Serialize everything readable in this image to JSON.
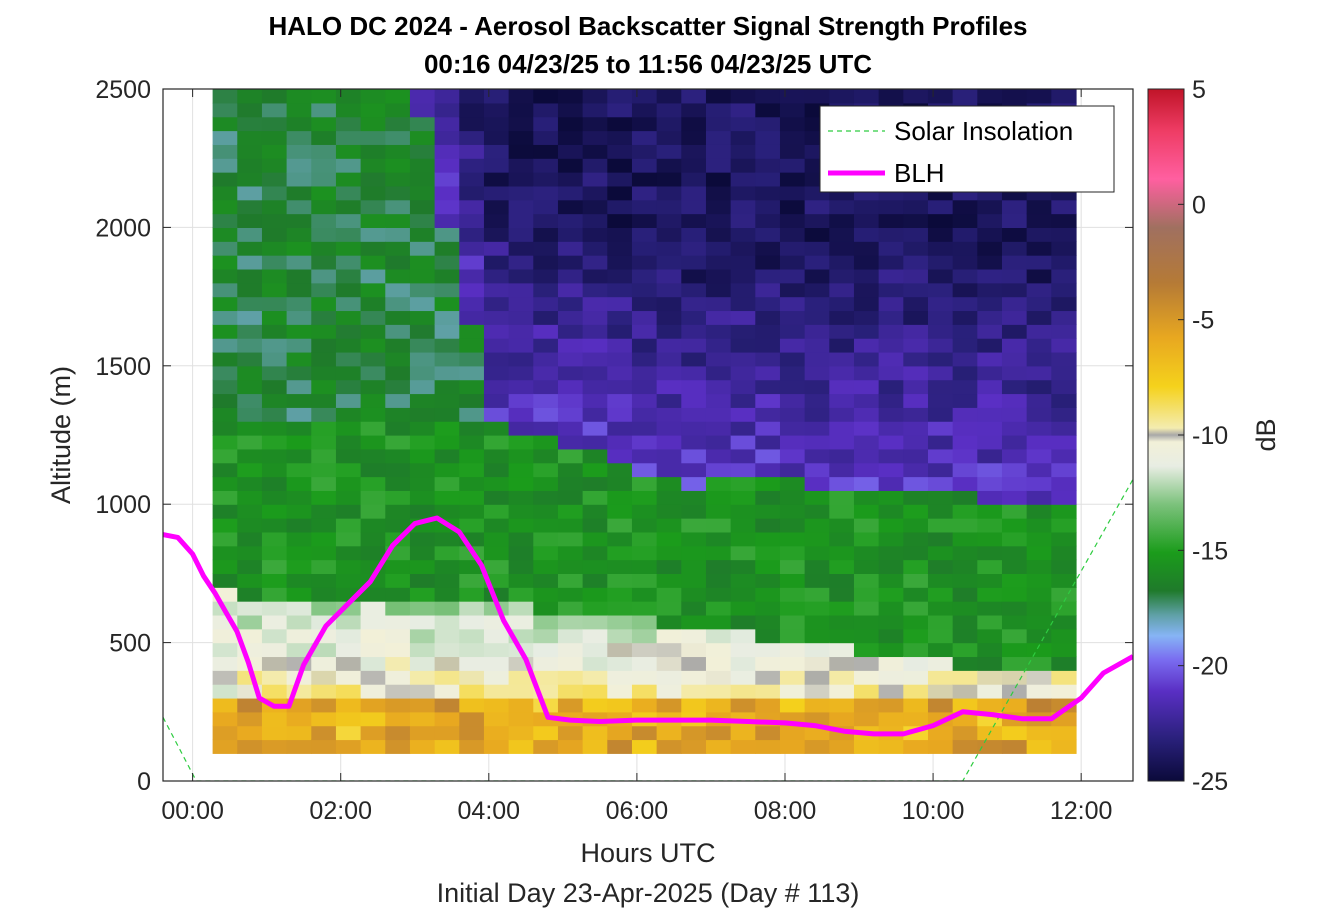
{
  "chart_data": {
    "type": "heatmap",
    "title": "HALO DC 2024 - Aerosol Backscatter Signal Strength Profiles",
    "subtitle": "00:16 04/23/25 to 11:56 04/23/25  UTC",
    "xlabel": "Hours UTC",
    "xlabel2": "Initial Day 23-Apr-2025 (Day # 113)",
    "ylabel": "Altitude (m)",
    "colorbar_label": "dB",
    "xlim": [
      -0.4,
      12.7
    ],
    "ylim": [
      0,
      2500
    ],
    "x_ticks": [
      0,
      2,
      4,
      6,
      8,
      10,
      12
    ],
    "x_tick_labels": [
      "00:00",
      "02:00",
      "04:00",
      "06:00",
      "08:00",
      "10:00",
      "12:00"
    ],
    "y_ticks": [
      0,
      500,
      1000,
      1500,
      2000,
      2500
    ],
    "y_tick_labels": [
      "0",
      "500",
      "1000",
      "1500",
      "2000",
      "2500"
    ],
    "clim": [
      -25,
      5
    ],
    "colorbar_ticks": [
      5,
      0,
      -5,
      -10,
      -15,
      -20,
      -25
    ],
    "colorbar_tick_labels": [
      "5",
      "0",
      "-5",
      "-10",
      "-15",
      "-20",
      "-25"
    ],
    "grid": true,
    "legend_position": "top-right",
    "data_extent": {
      "x": [
        0.27,
        11.93
      ],
      "y": [
        100,
        2500
      ]
    },
    "heatmap_grid": {
      "nx": 35,
      "ny": 48
    },
    "series": [
      {
        "name": "Solar Insolation",
        "style": "dashed",
        "color": "#2ecc40",
        "x": [
          -0.4,
          0.05,
          10.4,
          12.7
        ],
        "y": [
          230,
          0,
          0,
          1090
        ]
      },
      {
        "name": "BLH",
        "style": "solid",
        "color": "#ff00ff",
        "x": [
          -0.4,
          -0.2,
          0.0,
          0.15,
          0.3,
          0.45,
          0.6,
          0.75,
          0.9,
          1.1,
          1.3,
          1.5,
          1.8,
          2.1,
          2.4,
          2.7,
          3.0,
          3.3,
          3.6,
          3.9,
          4.2,
          4.5,
          4.8,
          5.1,
          5.5,
          6.0,
          6.5,
          7.0,
          7.5,
          8.0,
          8.4,
          8.8,
          9.2,
          9.6,
          10.0,
          10.4,
          10.8,
          11.2,
          11.6,
          12.0,
          12.3,
          12.7
        ],
        "y": [
          890,
          880,
          820,
          740,
          680,
          610,
          540,
          430,
          300,
          270,
          270,
          420,
          560,
          640,
          720,
          850,
          930,
          950,
          900,
          780,
          580,
          440,
          230,
          220,
          215,
          220,
          220,
          220,
          215,
          210,
          200,
          180,
          170,
          170,
          200,
          250,
          240,
          225,
          225,
          300,
          390,
          450
        ]
      }
    ]
  },
  "legend": {
    "solar_label": "Solar Insolation",
    "blh_label": "BLH"
  },
  "colors": {
    "solar": "#2ecc40",
    "blh": "#ff00ff"
  }
}
